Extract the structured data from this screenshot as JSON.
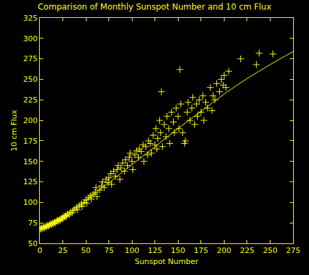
{
  "chart_data": {
    "type": "scatter",
    "title": "Comparison of Monthly Sunspot Number and 10 cm Flux",
    "x_label": "Sunspot Number",
    "y_label": "10 cm Flux",
    "xlim": [
      0,
      275
    ],
    "xticks": [
      0,
      25,
      50,
      75,
      100,
      125,
      150,
      175,
      200,
      225,
      250,
      275
    ],
    "ylim": [
      50,
      325
    ],
    "yticks": [
      50,
      75,
      100,
      125,
      150,
      175,
      200,
      225,
      250,
      275,
      300,
      325
    ],
    "grid": false,
    "series": [
      {
        "type": "scatter",
        "marker": "cross",
        "color": "#ffff00",
        "x": [
          0,
          1,
          2,
          3,
          4,
          5,
          6,
          7,
          8,
          9,
          10,
          11,
          12,
          13,
          14,
          15,
          16,
          17,
          18,
          19,
          20,
          21,
          22,
          23,
          24,
          25,
          26,
          27,
          28,
          29,
          30,
          32,
          33,
          35,
          36,
          38,
          40,
          41,
          43,
          45,
          46,
          48,
          50,
          51,
          53,
          55,
          56,
          58,
          60,
          61,
          62,
          65,
          67,
          68,
          70,
          72,
          74,
          75,
          77,
          78,
          80,
          82,
          84,
          85,
          87,
          88,
          90,
          92,
          93,
          95,
          97,
          98,
          100,
          101,
          103,
          105,
          107,
          108,
          110,
          112,
          113,
          115,
          117,
          118,
          120,
          121,
          123,
          125,
          126,
          127,
          128,
          130,
          131,
          132,
          133,
          135,
          137,
          138,
          140,
          141,
          143,
          145,
          146,
          148,
          150,
          151,
          152,
          153,
          155,
          157,
          158,
          160,
          161,
          163,
          165,
          166,
          168,
          170,
          171,
          173,
          175,
          177,
          178,
          180,
          182,
          185,
          187,
          188,
          190,
          192,
          195,
          197,
          199,
          200,
          202,
          205,
          218,
          235,
          238,
          253
        ],
        "values": [
          67,
          68,
          69,
          68,
          70,
          69,
          71,
          70,
          72,
          71,
          72,
          73,
          74,
          73,
          75,
          74,
          76,
          75,
          77,
          78,
          77,
          79,
          78,
          80,
          81,
          80,
          83,
          82,
          84,
          83,
          86,
          85,
          88,
          87,
          90,
          92,
          94,
          91,
          96,
          98,
          95,
          100,
          103,
          99,
          106,
          108,
          104,
          110,
          112,
          118,
          107,
          115,
          120,
          125,
          118,
          128,
          124,
          130,
          135,
          122,
          138,
          132,
          140,
          145,
          128,
          142,
          148,
          138,
          152,
          145,
          155,
          160,
          150,
          140,
          158,
          163,
          155,
          165,
          162,
          170,
          150,
          168,
          158,
          175,
          172,
          160,
          182,
          170,
          190,
          165,
          178,
          200,
          185,
          235,
          168,
          195,
          180,
          205,
          190,
          172,
          210,
          198,
          185,
          215,
          205,
          190,
          262,
          220,
          185,
          172,
          175,
          210,
          222,
          200,
          215,
          228,
          195,
          220,
          205,
          225,
          210,
          230,
          200,
          222,
          215,
          240,
          212,
          230,
          225,
          245,
          235,
          250,
          243,
          255,
          240,
          260,
          275,
          268,
          282,
          281
        ]
      },
      {
        "type": "line",
        "line_style": "solid",
        "color": "#ffff00",
        "x": [
          0,
          25,
          50,
          75,
          100,
          125,
          150,
          175,
          200,
          225,
          250,
          275
        ],
        "values": [
          67,
          83,
          103,
          124,
          146,
          168,
          190,
          211,
          232,
          251,
          268,
          284
        ]
      }
    ]
  }
}
